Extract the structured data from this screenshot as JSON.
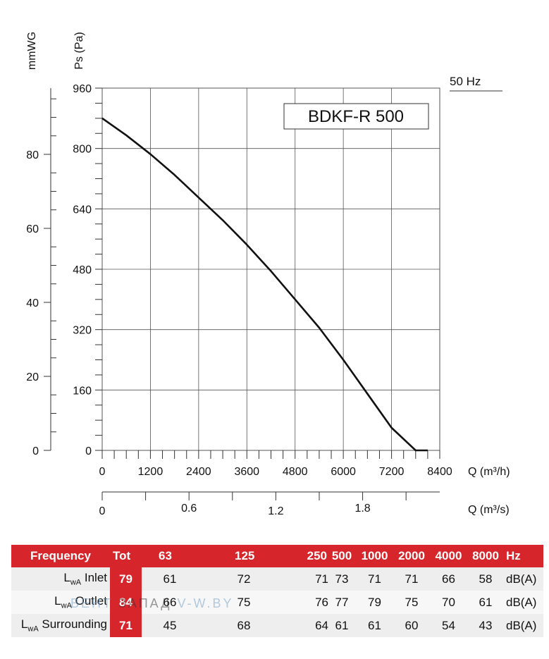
{
  "chart_data": {
    "type": "line",
    "title": "BDKF-R 500",
    "frequency_label": "50 Hz",
    "xlabel": "Q (m³/h)",
    "xlabel2": "Q (m³/s)",
    "ylabel": "Ps (Pa)",
    "ylabel2": "mmWG",
    "xlim": [
      0,
      8400
    ],
    "ylim": [
      0,
      960
    ],
    "x2lim": [
      0,
      2.333
    ],
    "y2lim": [
      0,
      97.9
    ],
    "grid": true,
    "x_ticks": [
      "0",
      "1200",
      "2400",
      "3600",
      "4800",
      "6000",
      "7200",
      "8400"
    ],
    "x_tick_values": [
      0,
      1200,
      2400,
      3600,
      4800,
      6000,
      7200,
      8400
    ],
    "x2_ticks": [
      "0",
      "0.6",
      "1.2",
      "1.8"
    ],
    "x2_tick_values": [
      0,
      0.6,
      1.2,
      1.8
    ],
    "y_ticks": [
      "0",
      "160",
      "320",
      "480",
      "640",
      "800",
      "960"
    ],
    "y_tick_values": [
      0,
      160,
      320,
      480,
      640,
      800,
      960
    ],
    "y2_ticks": [
      "0",
      "20",
      "40",
      "60",
      "80"
    ],
    "y2_tick_values": [
      0,
      20,
      40,
      60,
      80
    ],
    "series": [
      {
        "x": [
          0,
          600,
          1200,
          1800,
          2400,
          3000,
          3600,
          4200,
          4800,
          5400,
          6000,
          6600,
          7200,
          7800,
          8100
        ],
        "y": [
          880,
          835,
          785,
          730,
          670,
          610,
          545,
          475,
          400,
          325,
          240,
          150,
          60,
          0,
          0
        ]
      }
    ]
  },
  "table": {
    "headers": [
      "Frequency",
      "Tot",
      "63",
      "125",
      "250",
      "500",
      "1000",
      "2000",
      "4000",
      "8000",
      "Hz"
    ],
    "rows": [
      {
        "label": "L",
        "label_sub": "wA",
        "label_rest": " Inlet",
        "values": [
          "79",
          "61",
          "72",
          "71",
          "73",
          "71",
          "71",
          "66",
          "58",
          "dB(A)"
        ]
      },
      {
        "label": "L",
        "label_sub": "wA",
        "label_rest": " Outlet",
        "values": [
          "84",
          "66",
          "75",
          "76",
          "77",
          "79",
          "75",
          "70",
          "61",
          "dB(A)"
        ]
      },
      {
        "label": "L",
        "label_sub": "wA",
        "label_rest": " Surrounding",
        "values": [
          "71",
          "45",
          "68",
          "64",
          "61",
          "61",
          "60",
          "54",
          "43",
          "dB(A)"
        ]
      }
    ]
  },
  "watermark": {
    "text_a": "ВЕНТ",
    "text_b": "ЗАПАД",
    "text_c": "V-W.BY"
  },
  "colors": {
    "accent": "#d6262b",
    "curve": "#111111",
    "grid": "#555555"
  }
}
